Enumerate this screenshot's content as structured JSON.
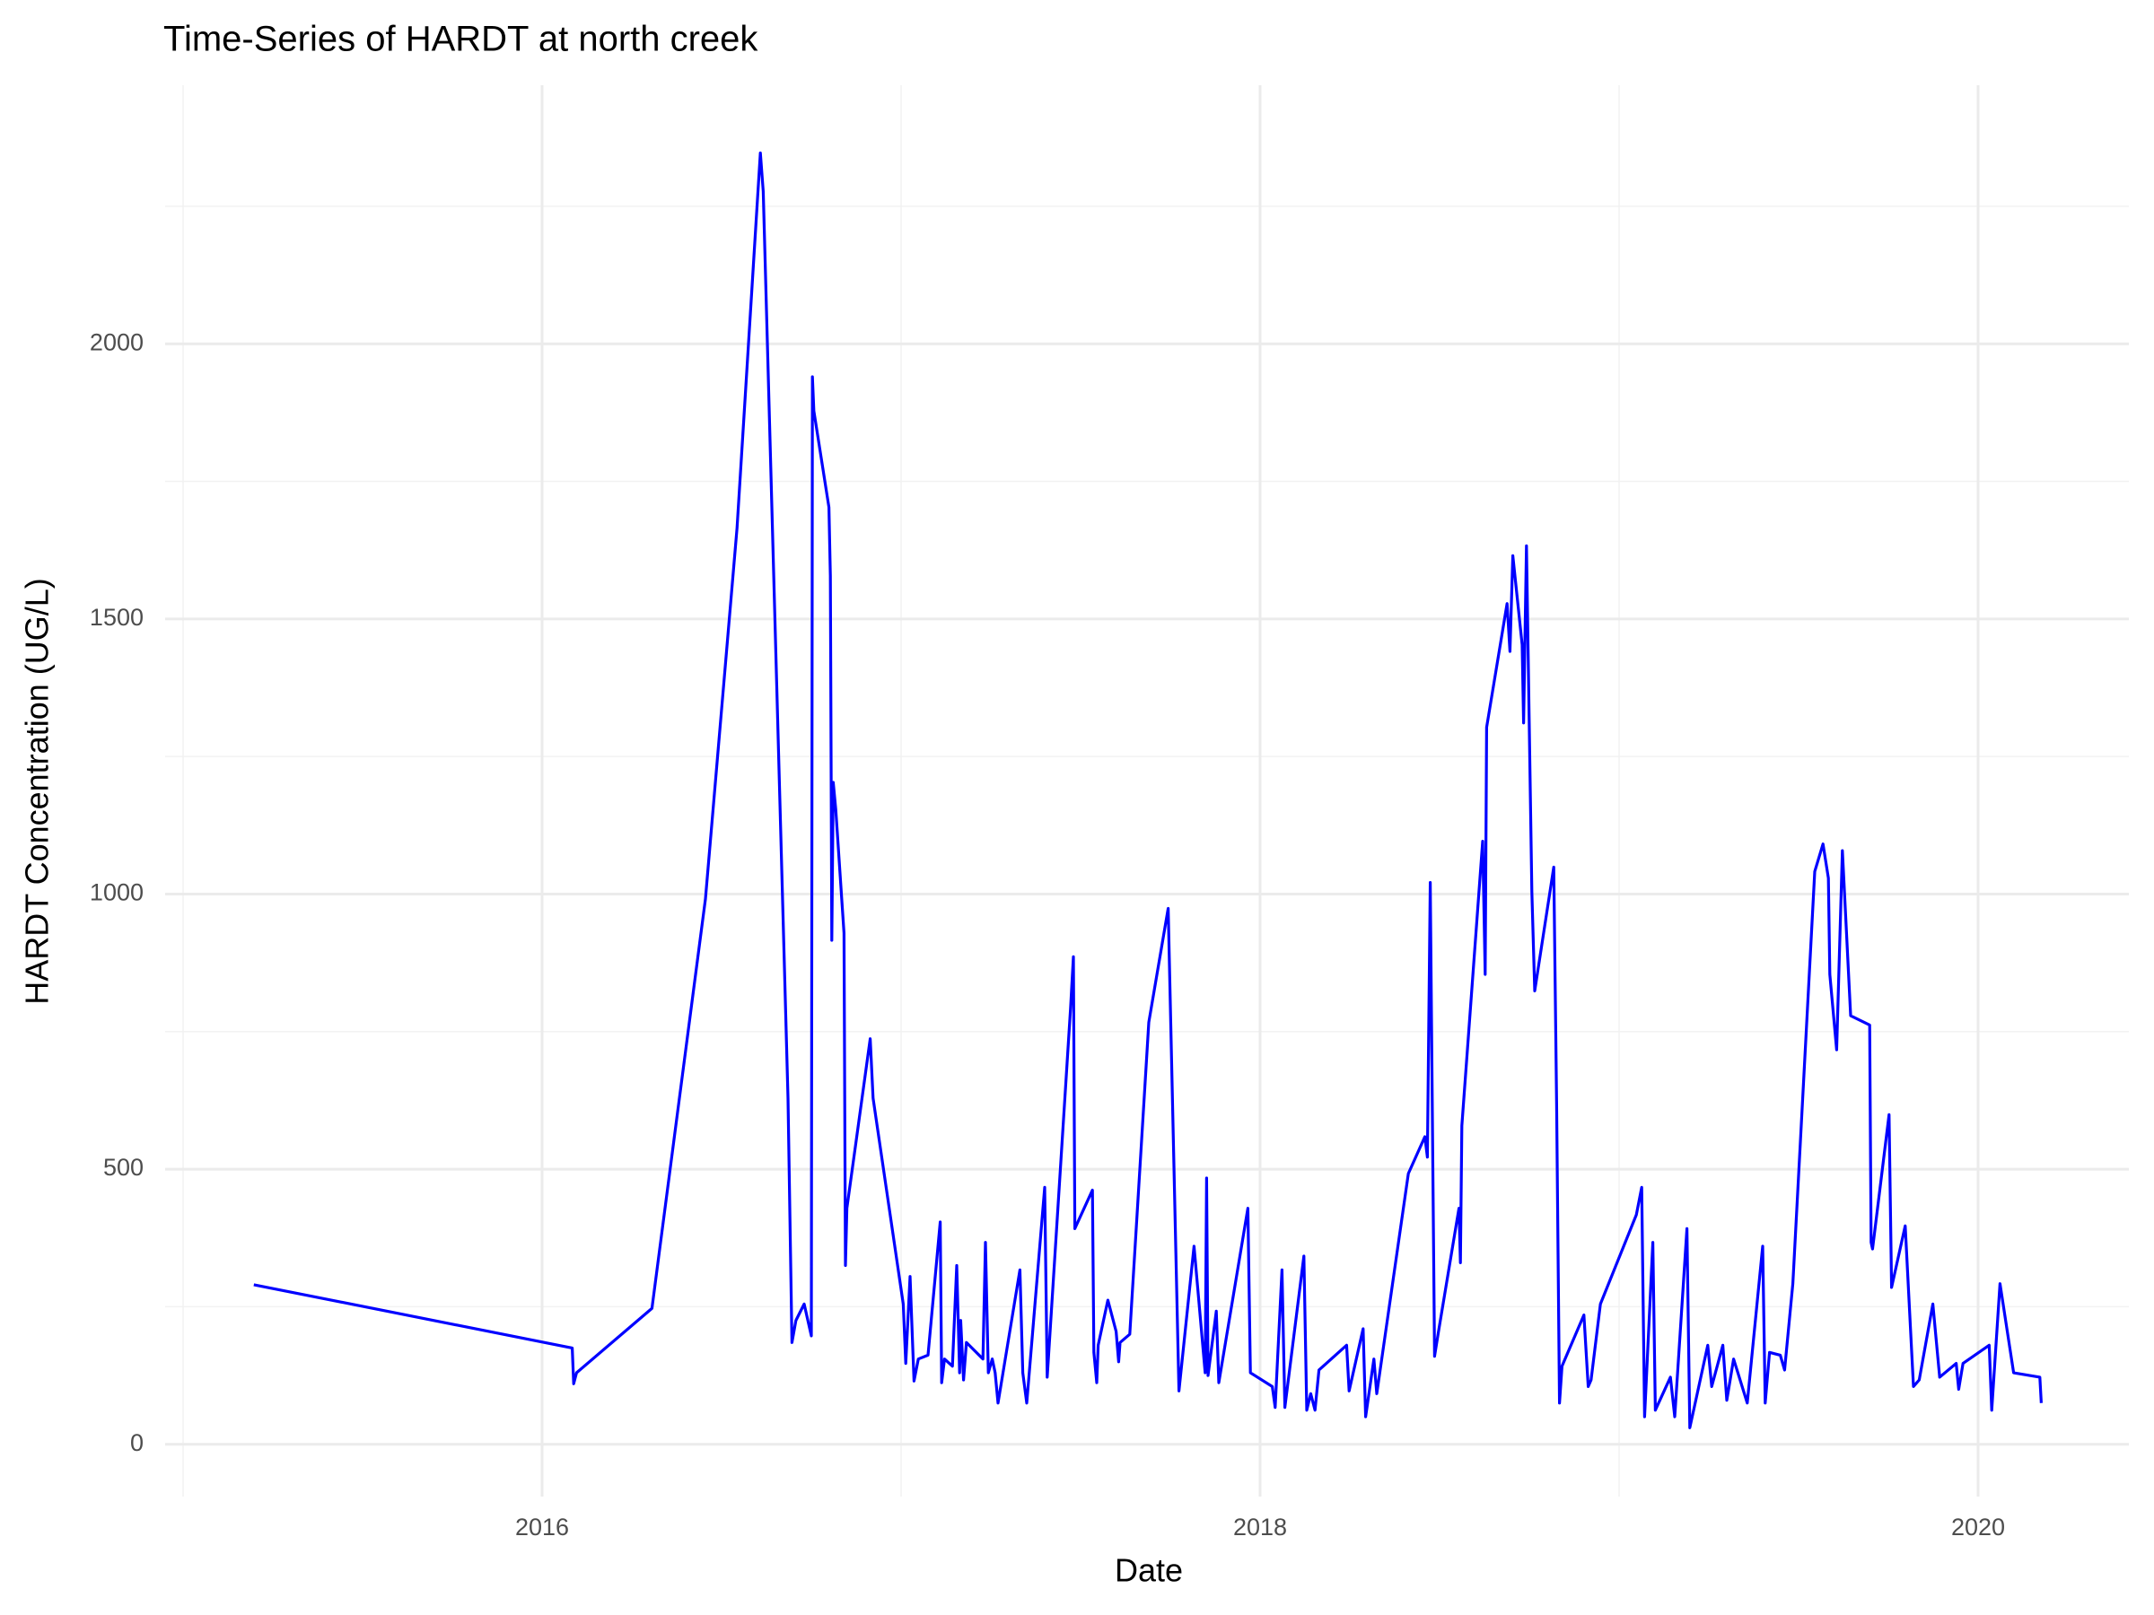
{
  "chart_data": {
    "type": "line",
    "title": "Time-Series of HARDT at north creek",
    "x_label": "Date",
    "y_label": "HARDT Concentration (UG/L)",
    "color": "#0000ff",
    "grid": true,
    "xlim": [
      2014.95,
      2020.42
    ],
    "xticks": [
      2016,
      2018,
      2020
    ],
    "xminor": [
      2015,
      2017,
      2019
    ],
    "ylim": [
      -95,
      2470
    ],
    "yticks": [
      0,
      500,
      1000,
      1500,
      2000
    ],
    "yminor": [
      250,
      750,
      1250,
      1750,
      2250
    ],
    "x": [
      2015.197,
      2016.084,
      2016.088,
      2016.096,
      2016.306,
      2016.455,
      2016.543,
      2016.608,
      2016.616,
      2016.685,
      2016.696,
      2016.707,
      2016.73,
      2016.75,
      2016.753,
      2016.757,
      2016.799,
      2016.803,
      2016.807,
      2016.811,
      2016.818,
      2016.841,
      2016.845,
      2016.849,
      2016.914,
      2016.922,
      2017.006,
      2017.013,
      2017.025,
      2017.036,
      2017.048,
      2017.075,
      2017.109,
      2017.113,
      2017.121,
      2017.143,
      2017.155,
      2017.163,
      2017.166,
      2017.174,
      2017.182,
      2017.228,
      2017.235,
      2017.243,
      2017.254,
      2017.262,
      2017.27,
      2017.331,
      2017.339,
      2017.35,
      2017.4,
      2017.407,
      2017.472,
      2017.48,
      2017.484,
      2017.533,
      2017.537,
      2017.545,
      2017.549,
      2017.576,
      2017.599,
      2017.606,
      2017.61,
      2017.637,
      2017.69,
      2017.744,
      2017.774,
      2017.816,
      2017.847,
      2017.851,
      2017.855,
      2017.878,
      2017.885,
      2017.966,
      2017.973,
      2018.034,
      2018.042,
      2018.061,
      2018.069,
      2018.122,
      2018.13,
      2018.141,
      2018.153,
      2018.164,
      2018.241,
      2018.248,
      2018.287,
      2018.294,
      2018.317,
      2018.325,
      2018.413,
      2018.459,
      2018.466,
      2018.474,
      2018.486,
      2018.497,
      2018.554,
      2018.558,
      2018.562,
      2018.62,
      2018.627,
      2018.631,
      2018.688,
      2018.696,
      2018.704,
      2018.73,
      2018.734,
      2018.742,
      2018.757,
      2018.765,
      2018.818,
      2018.826,
      2018.834,
      2018.841,
      2018.902,
      2018.914,
      2018.922,
      2018.948,
      2019.048,
      2019.063,
      2019.071,
      2019.094,
      2019.101,
      2019.143,
      2019.155,
      2019.189,
      2019.197,
      2019.247,
      2019.258,
      2019.289,
      2019.3,
      2019.319,
      2019.357,
      2019.4,
      2019.407,
      2019.419,
      2019.449,
      2019.461,
      2019.484,
      2019.545,
      2019.568,
      2019.583,
      2019.587,
      2019.606,
      2019.622,
      2019.645,
      2019.698,
      2019.702,
      2019.706,
      2019.752,
      2019.759,
      2019.797,
      2019.82,
      2019.836,
      2019.874,
      2019.893,
      2019.939,
      2019.946,
      2019.958,
      2020.031,
      2020.038,
      2020.061,
      2020.099,
      2020.172,
      2020.176
    ],
    "values": [
      290,
      175,
      110,
      130,
      247,
      991,
      1665,
      2347,
      2277,
      629,
      185,
      225,
      255,
      197,
      1940,
      1878,
      1703,
      1578,
      916,
      1203,
      1154,
      929,
      325,
      429,
      737,
      629,
      255,
      147,
      305,
      115,
      155,
      162,
      404,
      112,
      155,
      142,
      325,
      130,
      225,
      117,
      185,
      155,
      367,
      130,
      155,
      130,
      75,
      317,
      130,
      75,
      467,
      122,
      792,
      886,
      392,
      462,
      167,
      112,
      180,
      262,
      205,
      150,
      185,
      200,
      767,
      974,
      97,
      360,
      130,
      484,
      125,
      242,
      112,
      429,
      130,
      105,
      67,
      317,
      67,
      342,
      62,
      92,
      62,
      135,
      180,
      97,
      210,
      50,
      155,
      92,
      492,
      559,
      522,
      1021,
      160,
      205,
      429,
      330,
      579,
      1096,
      854,
      1303,
      1528,
      1441,
      1615,
      1453,
      1311,
      1633,
      1004,
      824,
      1049,
      617,
      75,
      142,
      235,
      105,
      117,
      255,
      417,
      467,
      50,
      367,
      62,
      122,
      50,
      392,
      30,
      180,
      105,
      180,
      80,
      155,
      75,
      360,
      75,
      167,
      162,
      135,
      292,
      1041,
      1091,
      1029,
      854,
      717,
      1079,
      779,
      762,
      367,
      355,
      599,
      285,
      397,
      105,
      117,
      255,
      122,
      147,
      100,
      147,
      180,
      62,
      292,
      130,
      122,
      75
    ]
  }
}
